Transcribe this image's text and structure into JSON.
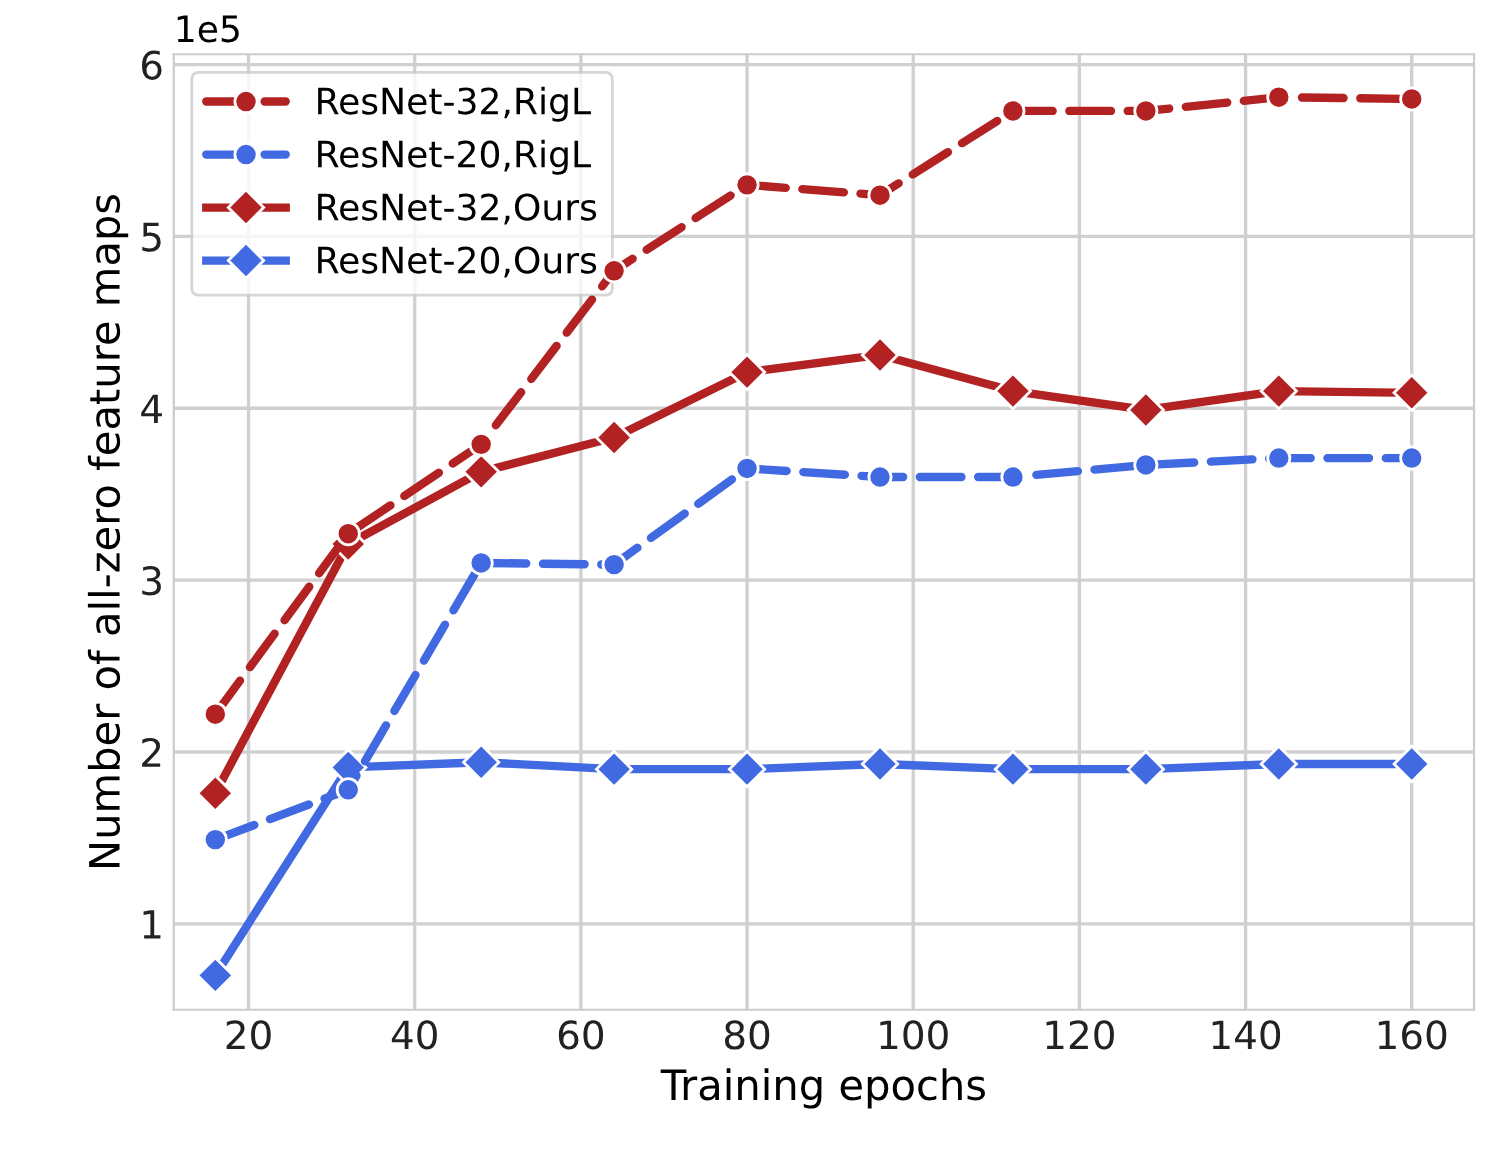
{
  "chart_data": {
    "type": "line",
    "xlabel": "Training epochs",
    "ylabel": "Number of all-zero feature maps",
    "annotations": [
      "1e5"
    ],
    "x": [
      16,
      32,
      48,
      64,
      80,
      96,
      112,
      128,
      144,
      160
    ],
    "series": [
      {
        "name": "ResNet-32,RigL",
        "color": "#b22222",
        "marker": "circle",
        "line_style": "dashed",
        "values": [
          2.22,
          3.27,
          3.79,
          4.8,
          5.3,
          5.24,
          5.73,
          5.73,
          5.81,
          5.8
        ]
      },
      {
        "name": "ResNet-20,RigL",
        "color": "#4169e1",
        "marker": "circle",
        "line_style": "dashed",
        "values": [
          1.49,
          1.78,
          3.1,
          3.09,
          3.65,
          3.6,
          3.6,
          3.67,
          3.71,
          3.71
        ]
      },
      {
        "name": "ResNet-32,Ours",
        "color": "#b22222",
        "marker": "diamond",
        "line_style": "solid",
        "values": [
          1.76,
          3.21,
          3.63,
          3.83,
          4.21,
          4.31,
          4.1,
          3.99,
          4.1,
          4.09
        ]
      },
      {
        "name": "ResNet-20,Ours",
        "color": "#4169e1",
        "marker": "diamond",
        "line_style": "solid",
        "values": [
          0.7,
          1.91,
          1.94,
          1.9,
          1.9,
          1.93,
          1.9,
          1.9,
          1.93,
          1.93
        ]
      }
    ],
    "xlim": [
      11,
      167.5
    ],
    "ylim": [
      0.5,
      6.06
    ],
    "xticks": [
      20,
      40,
      60,
      80,
      100,
      120,
      140,
      160
    ],
    "yticks": [
      1,
      2,
      3,
      4,
      5,
      6
    ],
    "grid": true,
    "legend": "top left"
  }
}
